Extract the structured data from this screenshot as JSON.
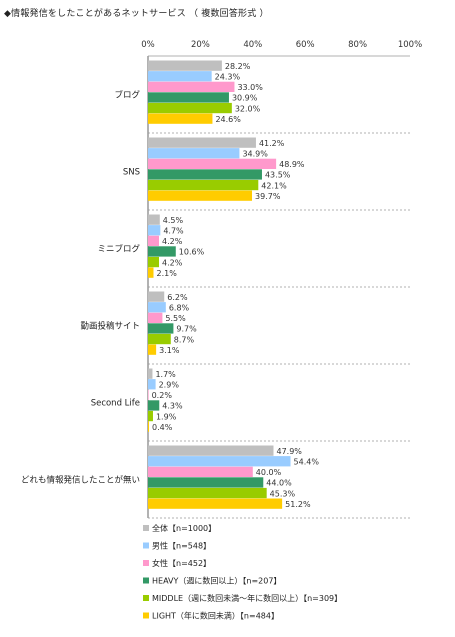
{
  "title": "◆情報発信をしたことがあるネットサービス （ 複数回答形式 ）",
  "chart_data": {
    "type": "bar",
    "orientation": "horizontal",
    "xlim": [
      0,
      100
    ],
    "ticks": [
      "0%",
      "20%",
      "40%",
      "60%",
      "80%",
      "100%"
    ],
    "categories": [
      "ブログ",
      "SNS",
      "ミニブログ",
      "動画投稿サイト",
      "Second Life",
      "どれも情報発信したことが無い"
    ],
    "series": [
      {
        "name": "全体【n=1000】",
        "color": "#bfbfbf",
        "values": [
          28.2,
          41.2,
          4.5,
          6.2,
          1.7,
          47.9
        ]
      },
      {
        "name": "男性【n=548】",
        "color": "#99ccff",
        "values": [
          24.3,
          34.9,
          4.7,
          6.8,
          2.9,
          54.4
        ]
      },
      {
        "name": "女性【n=452】",
        "color": "#ff99cc",
        "values": [
          33.0,
          48.9,
          4.2,
          5.5,
          0.2,
          40.0
        ]
      },
      {
        "name": "HEAVY（週に数回以上）【n=207】",
        "color": "#339966",
        "values": [
          30.9,
          43.5,
          10.6,
          9.7,
          4.3,
          44.0
        ]
      },
      {
        "name": "MIDDLE（週に数回未満～年に数回以上）【n=309】",
        "color": "#99cc00",
        "values": [
          32.0,
          42.1,
          4.2,
          8.7,
          1.9,
          45.3
        ]
      },
      {
        "name": "LIGHT（年に数回未満）【n=484】",
        "color": "#ffcc00",
        "values": [
          24.6,
          39.7,
          2.1,
          3.1,
          0.4,
          51.2
        ]
      }
    ],
    "legend_position": "bottom",
    "grid": "dashed-category-separators"
  }
}
